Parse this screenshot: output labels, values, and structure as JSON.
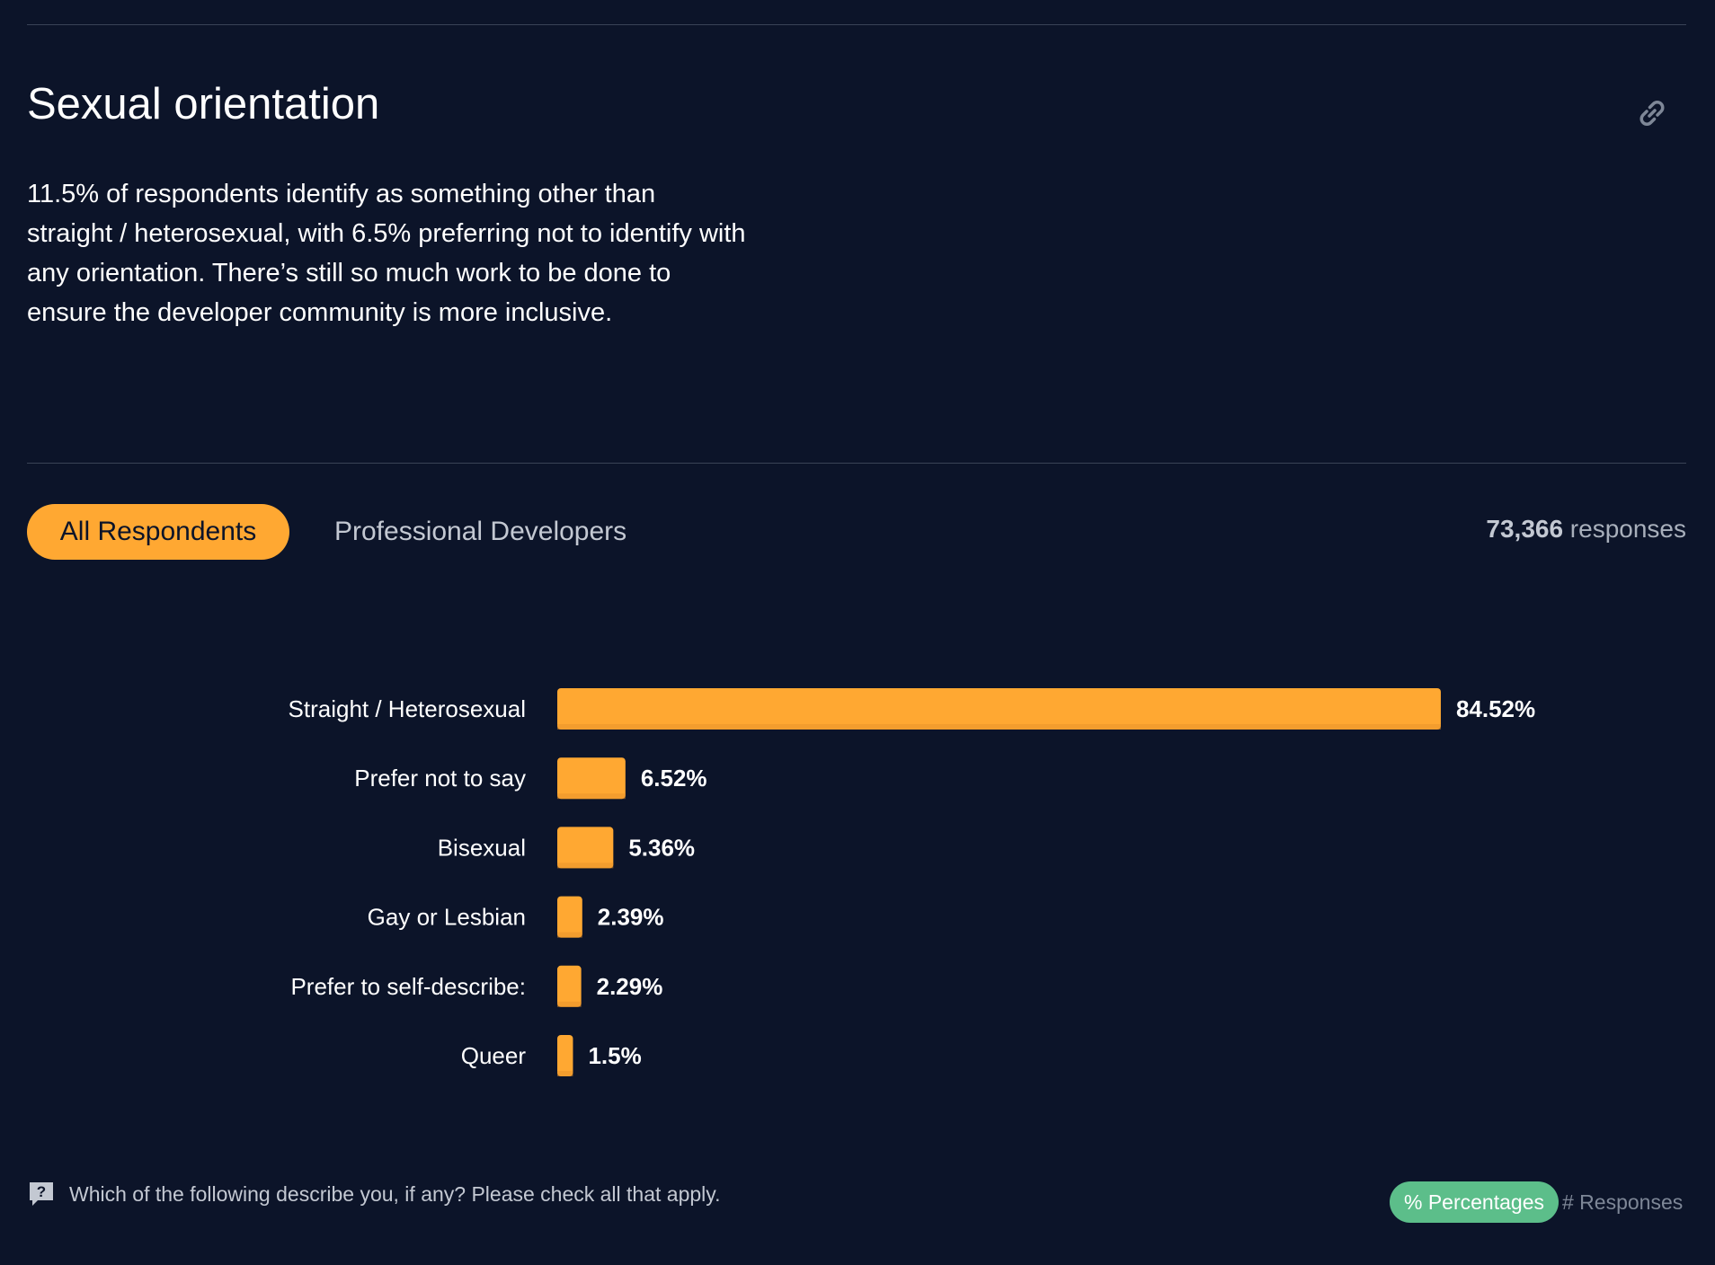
{
  "section": {
    "title": "Sexual orientation",
    "description": "11.5% of respondents identify as something other than straight / heterosexual, with 6.5% preferring not to identify with any orientation. There’s still so much work to be done to ensure the developer community is more inclusive.",
    "link_icon": "link-icon"
  },
  "tabs": [
    {
      "label": "All Respondents",
      "active": true
    },
    {
      "label": "Professional Developers",
      "active": false
    }
  ],
  "responses": {
    "count": "73,366",
    "label": " responses"
  },
  "colors": {
    "accent": "#ffa832",
    "background": "#0c1429",
    "toggle_active": "#5cbe8a"
  },
  "chart_data": {
    "type": "bar",
    "orientation": "horizontal",
    "categories": [
      "Straight / Heterosexual",
      "Prefer not to say",
      "Bisexual",
      "Gay or Lesbian",
      "Prefer to self-describe:",
      "Queer"
    ],
    "values": [
      84.52,
      6.52,
      5.36,
      2.39,
      2.29,
      1.5
    ],
    "value_labels": [
      "84.52%",
      "6.52%",
      "5.36%",
      "2.39%",
      "2.29%",
      "1.5%"
    ],
    "unit": "%",
    "xlim": [
      0,
      100
    ],
    "grid": false
  },
  "footer": {
    "question_icon": "question-icon",
    "question": "Which of the following describe you, if any? Please check all that apply.",
    "toggle_percentages": "% Percentages",
    "toggle_responses": "# Responses"
  }
}
